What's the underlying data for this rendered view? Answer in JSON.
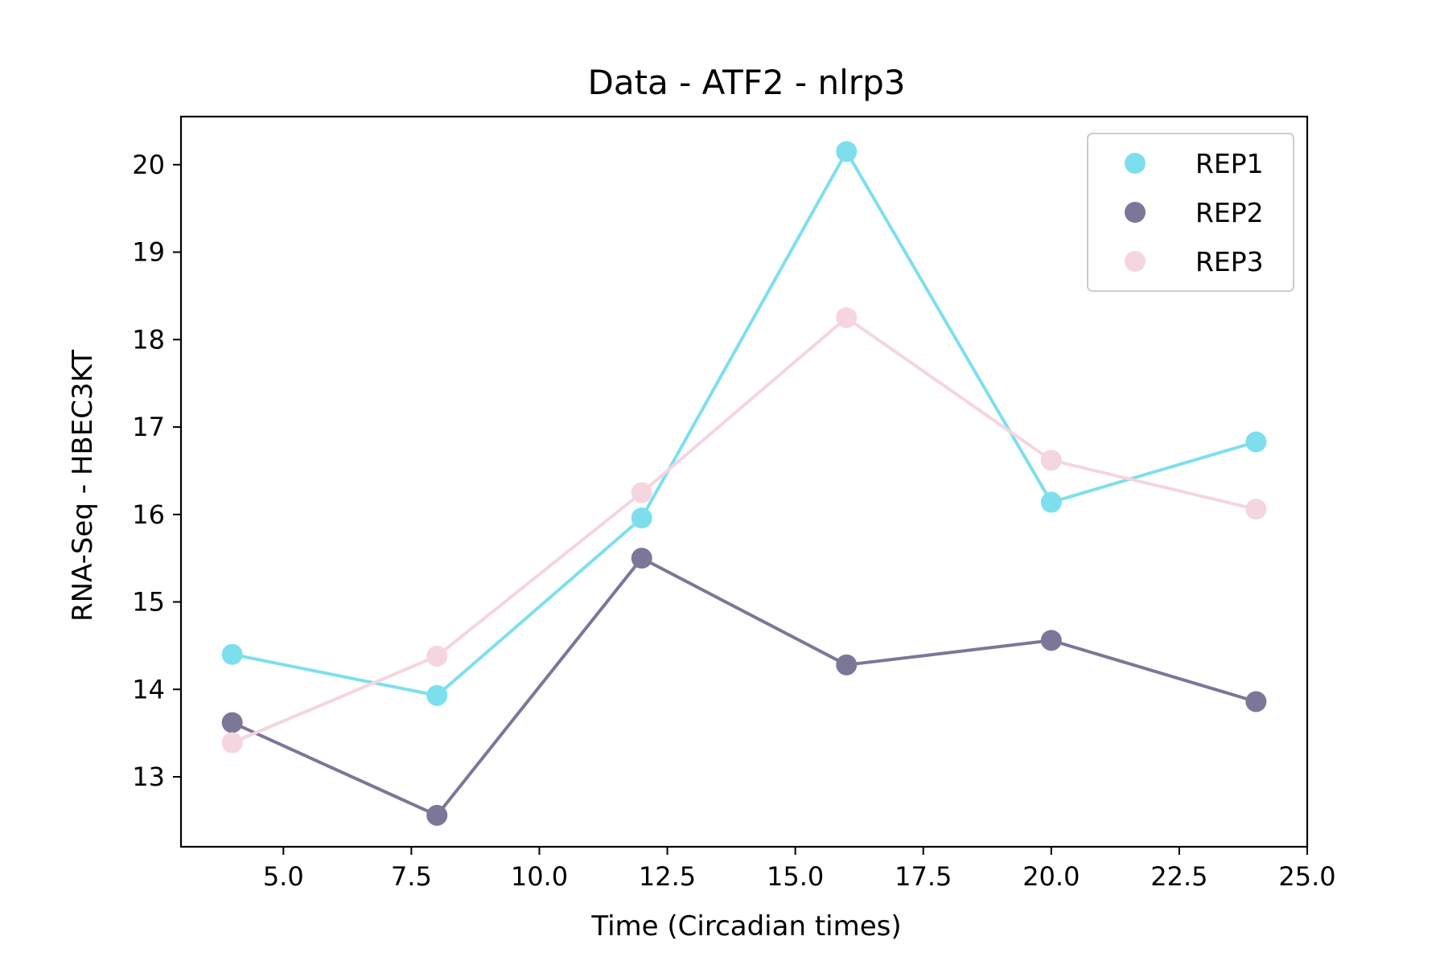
{
  "chart_data": {
    "type": "line",
    "title": "Data - ATF2 - nlrp3",
    "xlabel": "Time (Circadian times)",
    "ylabel": "RNA-Seq - HBEC3KT",
    "xlim": [
      3.0,
      25.0
    ],
    "ylim": [
      12.2,
      20.55
    ],
    "xticks": [
      5.0,
      7.5,
      10.0,
      12.5,
      15.0,
      17.5,
      20.0,
      22.5,
      25.0
    ],
    "xtick_labels": [
      "5.0",
      "7.5",
      "10.0",
      "12.5",
      "15.0",
      "17.5",
      "20.0",
      "22.5",
      "25.0"
    ],
    "yticks": [
      13,
      14,
      15,
      16,
      17,
      18,
      19,
      20
    ],
    "ytick_labels": [
      "13",
      "14",
      "15",
      "16",
      "17",
      "18",
      "19",
      "20"
    ],
    "grid": false,
    "legend_position": "top-right",
    "x": [
      4,
      8,
      12,
      16,
      20,
      24
    ],
    "series": [
      {
        "name": "REP1",
        "color": "#7ddfee",
        "values": [
          14.4,
          13.93,
          15.96,
          20.15,
          16.14,
          16.83
        ]
      },
      {
        "name": "REP2",
        "color": "#7a7798",
        "values": [
          13.62,
          12.56,
          15.5,
          14.28,
          14.56,
          13.86
        ]
      },
      {
        "name": "REP3",
        "color": "#f5d5df",
        "values": [
          13.39,
          14.38,
          16.25,
          18.25,
          16.62,
          16.06
        ]
      }
    ]
  }
}
